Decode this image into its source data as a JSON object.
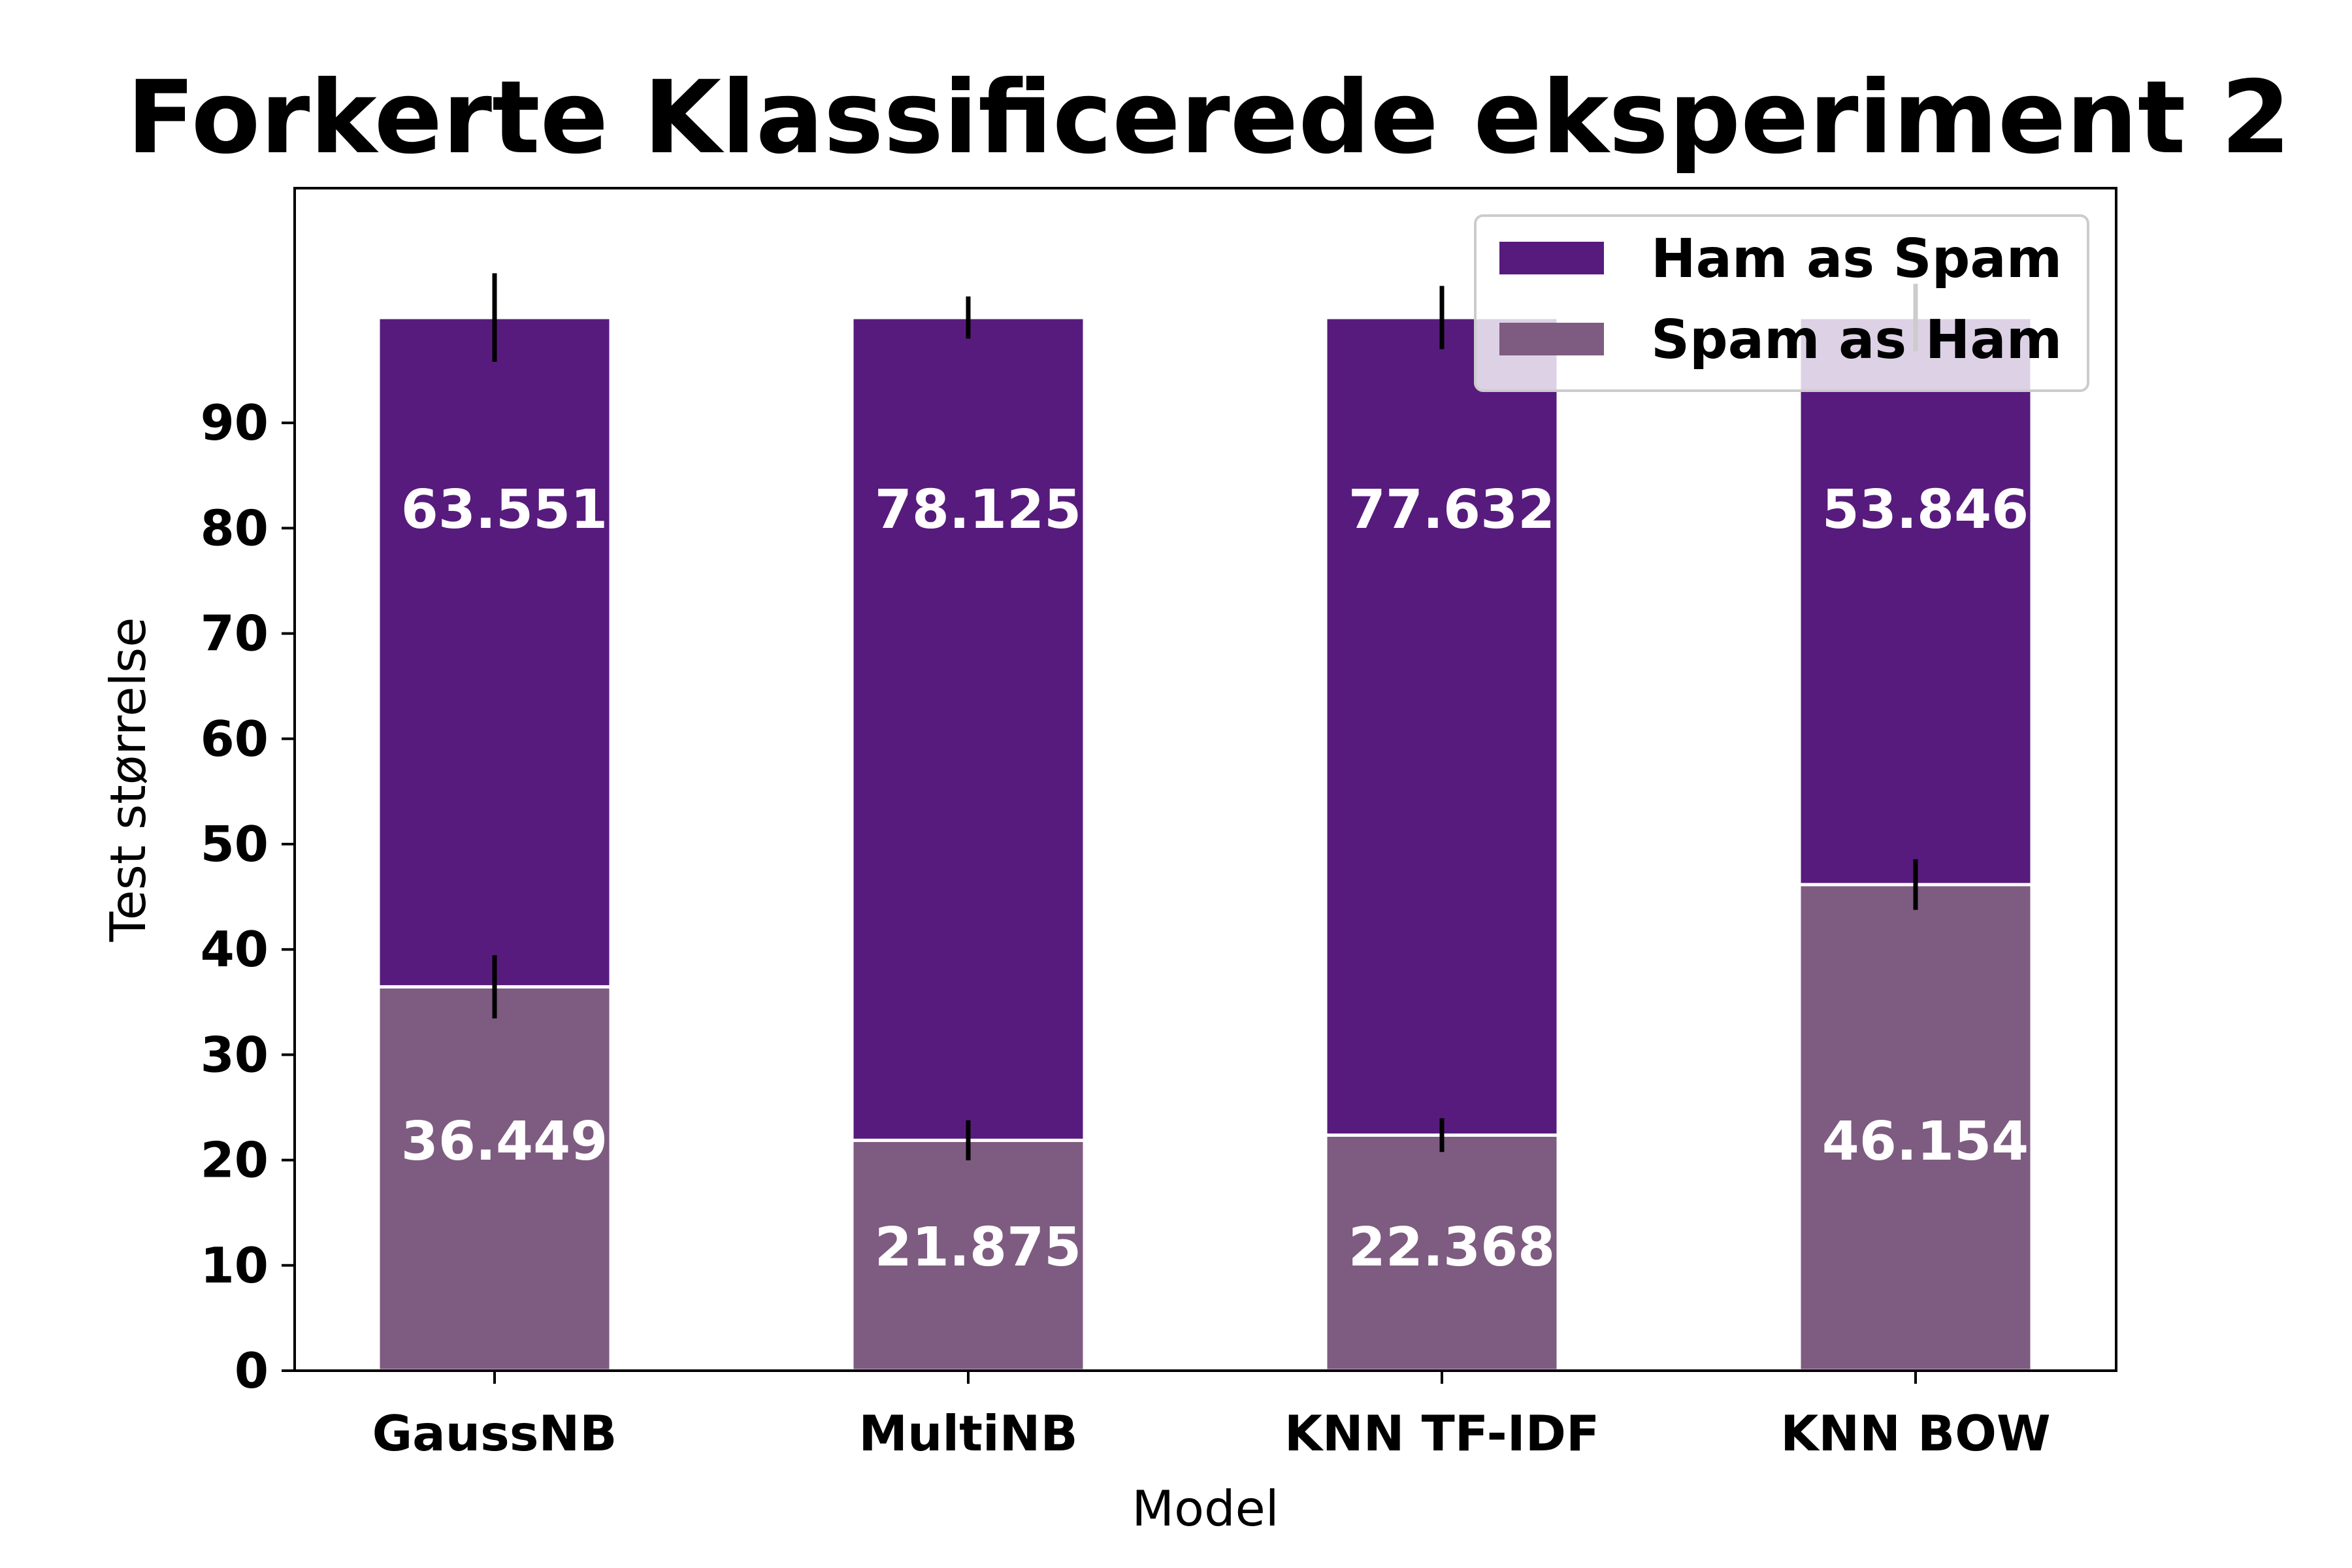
{
  "chart_data": {
    "type": "bar",
    "stacked": true,
    "title": "Forkerte Klassificerede eksperiment 2",
    "xlabel": "Model",
    "ylabel": "Test størrelse",
    "categories": [
      "GaussNB",
      "MultiNB",
      "KNN TF-IDF",
      "KNN BOW"
    ],
    "ylim": [
      0,
      112
    ],
    "yticks": [
      0,
      10,
      20,
      30,
      40,
      50,
      60,
      70,
      80,
      90
    ],
    "grid": false,
    "legend_position": "top-right",
    "series": [
      {
        "name": "Spam as Ham",
        "color": "#7e5b80",
        "values": [
          36.449,
          21.875,
          22.368,
          46.154
        ],
        "labels": [
          "36.449",
          "21.875",
          "22.368",
          "46.154"
        ],
        "error": [
          3.0,
          1.9,
          1.6,
          2.4
        ]
      },
      {
        "name": "Ham as Spam",
        "color": "#571b7d",
        "values": [
          63.551,
          78.125,
          77.632,
          53.846
        ],
        "labels": [
          "63.551",
          "78.125",
          "77.632",
          "53.846"
        ],
        "error": [
          4.2,
          2.0,
          3.0,
          3.2
        ]
      }
    ],
    "legend_order": [
      "Ham as Spam",
      "Spam as Ham"
    ]
  }
}
